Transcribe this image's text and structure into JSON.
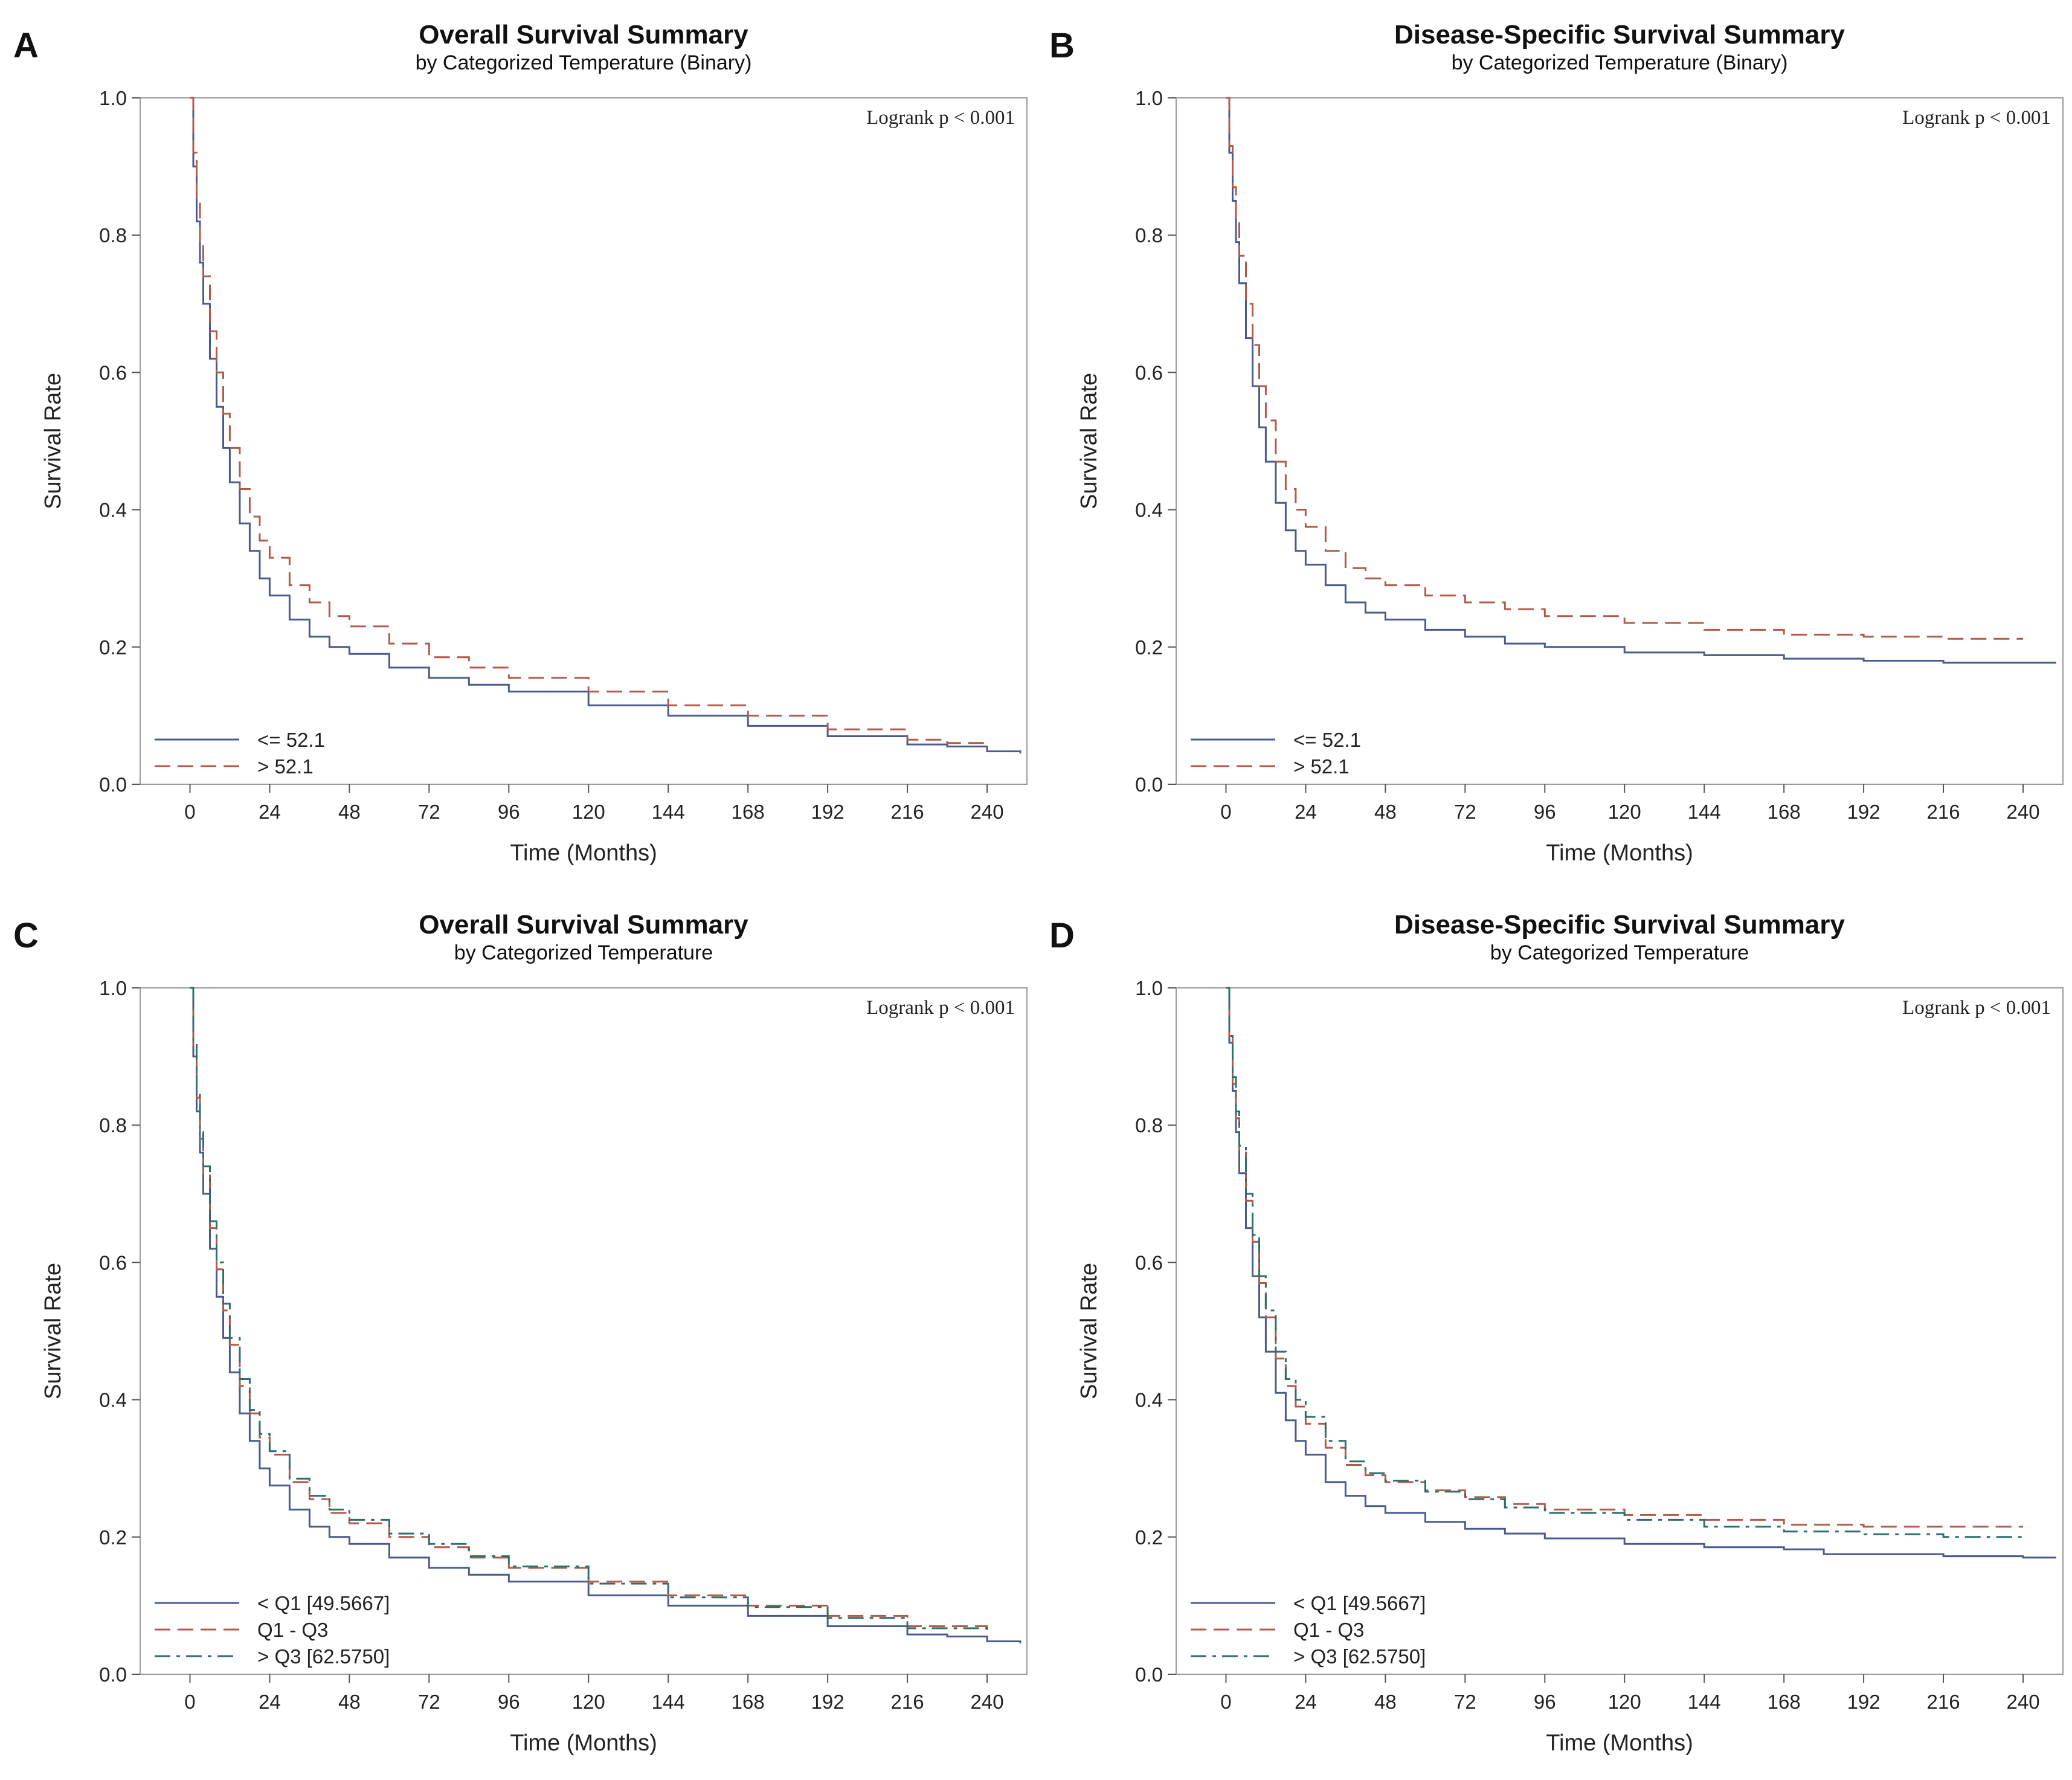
{
  "chart_data": [
    {
      "panel": "A",
      "type": "line",
      "title": "Overall Survival Summary",
      "subtitle": "by Categorized Temperature (Binary)",
      "xlabel": "Time (Months)",
      "ylabel": "Survival Rate",
      "xlim": [
        -15,
        252
      ],
      "ylim": [
        0,
        1
      ],
      "xticks": [
        "0",
        "24",
        "48",
        "72",
        "96",
        "120",
        "144",
        "168",
        "192",
        "216",
        "240"
      ],
      "yticks": [
        "0.0",
        "0.2",
        "0.4",
        "0.6",
        "0.8",
        "1.0"
      ],
      "annotation": "Logrank p < 0.001",
      "series": [
        {
          "name": "<= 52.1",
          "color": "#4a5a8c",
          "style": "solid",
          "x": [
            0,
            1,
            2,
            3,
            4,
            6,
            8,
            10,
            12,
            15,
            18,
            21,
            24,
            30,
            36,
            42,
            48,
            60,
            72,
            84,
            96,
            120,
            144,
            168,
            192,
            216,
            228,
            240,
            250
          ],
          "y": [
            1.0,
            0.9,
            0.82,
            0.76,
            0.7,
            0.62,
            0.55,
            0.49,
            0.44,
            0.38,
            0.34,
            0.3,
            0.275,
            0.24,
            0.215,
            0.2,
            0.19,
            0.17,
            0.155,
            0.145,
            0.135,
            0.115,
            0.1,
            0.085,
            0.07,
            0.058,
            0.055,
            0.048,
            0.045
          ]
        },
        {
          "name": "> 52.1",
          "color": "#b05a4a",
          "style": "dashed",
          "x": [
            0,
            1,
            2,
            3,
            4,
            6,
            8,
            10,
            12,
            15,
            18,
            21,
            24,
            30,
            36,
            42,
            48,
            60,
            72,
            84,
            96,
            120,
            144,
            168,
            192,
            216,
            228,
            240
          ],
          "y": [
            1.0,
            0.92,
            0.85,
            0.79,
            0.74,
            0.66,
            0.6,
            0.54,
            0.49,
            0.43,
            0.39,
            0.355,
            0.33,
            0.29,
            0.265,
            0.245,
            0.23,
            0.205,
            0.185,
            0.17,
            0.155,
            0.135,
            0.115,
            0.1,
            0.08,
            0.065,
            0.06,
            0.06
          ]
        }
      ]
    },
    {
      "panel": "B",
      "type": "line",
      "title": "Disease-Specific Survival Summary",
      "subtitle": "by Categorized Temperature (Binary)",
      "xlabel": "Time (Months)",
      "ylabel": "Survival Rate",
      "xlim": [
        -15,
        252
      ],
      "ylim": [
        0,
        1
      ],
      "xticks": [
        "0",
        "24",
        "48",
        "72",
        "96",
        "120",
        "144",
        "168",
        "192",
        "216",
        "240"
      ],
      "yticks": [
        "0.0",
        "0.2",
        "0.4",
        "0.6",
        "0.8",
        "1.0"
      ],
      "annotation": "Logrank p < 0.001",
      "series": [
        {
          "name": "<= 52.1",
          "color": "#4a5a8c",
          "style": "solid",
          "x": [
            0,
            1,
            2,
            3,
            4,
            6,
            8,
            10,
            12,
            15,
            18,
            21,
            24,
            30,
            36,
            42,
            48,
            60,
            72,
            84,
            96,
            120,
            144,
            168,
            192,
            216,
            240,
            250
          ],
          "y": [
            1.0,
            0.92,
            0.85,
            0.79,
            0.73,
            0.65,
            0.58,
            0.52,
            0.47,
            0.41,
            0.37,
            0.34,
            0.32,
            0.29,
            0.265,
            0.25,
            0.24,
            0.225,
            0.215,
            0.205,
            0.2,
            0.192,
            0.188,
            0.183,
            0.18,
            0.177,
            0.177,
            0.177
          ]
        },
        {
          "name": "> 52.1",
          "color": "#b05a4a",
          "style": "dashed",
          "x": [
            0,
            1,
            2,
            3,
            4,
            6,
            8,
            10,
            12,
            15,
            18,
            21,
            24,
            30,
            36,
            42,
            48,
            60,
            72,
            84,
            96,
            120,
            144,
            168,
            192,
            216,
            240
          ],
          "y": [
            1.0,
            0.93,
            0.87,
            0.82,
            0.77,
            0.7,
            0.64,
            0.58,
            0.53,
            0.47,
            0.43,
            0.4,
            0.375,
            0.34,
            0.315,
            0.3,
            0.29,
            0.275,
            0.265,
            0.255,
            0.245,
            0.235,
            0.225,
            0.218,
            0.215,
            0.212,
            0.212
          ]
        }
      ]
    },
    {
      "panel": "C",
      "type": "line",
      "title": "Overall Survival Summary",
      "subtitle": "by Categorized Temperature",
      "xlabel": "Time (Months)",
      "ylabel": "Survival Rate",
      "xlim": [
        -15,
        252
      ],
      "ylim": [
        0,
        1
      ],
      "xticks": [
        "0",
        "24",
        "48",
        "72",
        "96",
        "120",
        "144",
        "168",
        "192",
        "216",
        "240"
      ],
      "yticks": [
        "0.0",
        "0.2",
        "0.4",
        "0.6",
        "0.8",
        "1.0"
      ],
      "annotation": "Logrank p < 0.001",
      "series": [
        {
          "name": "< Q1 [49.5667]",
          "color": "#4a5a8c",
          "style": "solid",
          "x": [
            0,
            1,
            2,
            3,
            4,
            6,
            8,
            10,
            12,
            15,
            18,
            21,
            24,
            30,
            36,
            42,
            48,
            60,
            72,
            84,
            96,
            120,
            144,
            168,
            192,
            216,
            228,
            240,
            250
          ],
          "y": [
            1.0,
            0.9,
            0.82,
            0.76,
            0.7,
            0.62,
            0.55,
            0.49,
            0.44,
            0.38,
            0.34,
            0.3,
            0.275,
            0.24,
            0.215,
            0.2,
            0.19,
            0.17,
            0.155,
            0.145,
            0.135,
            0.115,
            0.1,
            0.085,
            0.07,
            0.058,
            0.055,
            0.048,
            0.045
          ]
        },
        {
          "name": "Q1 - Q3",
          "color": "#b05a4a",
          "style": "dashed",
          "x": [
            0,
            1,
            2,
            3,
            4,
            6,
            8,
            10,
            12,
            15,
            18,
            21,
            24,
            30,
            36,
            42,
            48,
            60,
            72,
            84,
            96,
            120,
            144,
            168,
            192,
            216,
            240
          ],
          "y": [
            1.0,
            0.91,
            0.84,
            0.78,
            0.73,
            0.65,
            0.59,
            0.53,
            0.48,
            0.42,
            0.38,
            0.345,
            0.32,
            0.28,
            0.255,
            0.235,
            0.22,
            0.2,
            0.185,
            0.17,
            0.155,
            0.135,
            0.115,
            0.1,
            0.085,
            0.07,
            0.06
          ]
        },
        {
          "name": "> Q3 [62.5750]",
          "color": "#2e6e6e",
          "style": "dashdot",
          "x": [
            0,
            1,
            2,
            3,
            4,
            6,
            8,
            10,
            12,
            15,
            18,
            21,
            24,
            30,
            36,
            42,
            48,
            60,
            72,
            84,
            96,
            120,
            144,
            168,
            192,
            216,
            240
          ],
          "y": [
            1.0,
            0.92,
            0.85,
            0.79,
            0.74,
            0.66,
            0.6,
            0.54,
            0.49,
            0.43,
            0.385,
            0.35,
            0.325,
            0.285,
            0.26,
            0.24,
            0.225,
            0.205,
            0.19,
            0.172,
            0.157,
            0.132,
            0.112,
            0.098,
            0.082,
            0.067,
            0.06
          ]
        }
      ]
    },
    {
      "panel": "D",
      "type": "line",
      "title": "Disease-Specific Survival Summary",
      "subtitle": "by Categorized Temperature",
      "xlabel": "Time (Months)",
      "ylabel": "Survival Rate",
      "xlim": [
        -15,
        252
      ],
      "ylim": [
        0,
        1
      ],
      "xticks": [
        "0",
        "24",
        "48",
        "72",
        "96",
        "120",
        "144",
        "168",
        "192",
        "216",
        "240"
      ],
      "yticks": [
        "0.0",
        "0.2",
        "0.4",
        "0.6",
        "0.8",
        "1.0"
      ],
      "annotation": "Logrank p < 0.001",
      "series": [
        {
          "name": "< Q1 [49.5667]",
          "color": "#4a5a8c",
          "style": "solid",
          "x": [
            0,
            1,
            2,
            3,
            4,
            6,
            8,
            10,
            12,
            15,
            18,
            21,
            24,
            30,
            36,
            42,
            48,
            60,
            72,
            84,
            96,
            120,
            144,
            168,
            180,
            192,
            216,
            240,
            250
          ],
          "y": [
            1.0,
            0.92,
            0.85,
            0.79,
            0.73,
            0.65,
            0.58,
            0.52,
            0.47,
            0.41,
            0.37,
            0.34,
            0.32,
            0.28,
            0.26,
            0.245,
            0.235,
            0.222,
            0.212,
            0.205,
            0.198,
            0.19,
            0.185,
            0.182,
            0.175,
            0.175,
            0.172,
            0.17,
            0.17
          ]
        },
        {
          "name": "Q1 - Q3",
          "color": "#b05a4a",
          "style": "dashed",
          "x": [
            0,
            1,
            2,
            3,
            4,
            6,
            8,
            10,
            12,
            15,
            18,
            21,
            24,
            30,
            36,
            42,
            48,
            60,
            72,
            84,
            96,
            120,
            144,
            168,
            192,
            216,
            240
          ],
          "y": [
            1.0,
            0.93,
            0.86,
            0.81,
            0.76,
            0.69,
            0.63,
            0.57,
            0.52,
            0.46,
            0.42,
            0.39,
            0.365,
            0.33,
            0.305,
            0.29,
            0.28,
            0.268,
            0.258,
            0.248,
            0.24,
            0.232,
            0.225,
            0.218,
            0.215,
            0.215,
            0.215
          ]
        },
        {
          "name": "> Q3 [62.5750]",
          "color": "#2e6e6e",
          "style": "dashdot",
          "x": [
            0,
            1,
            2,
            3,
            4,
            6,
            8,
            10,
            12,
            15,
            18,
            21,
            24,
            30,
            36,
            42,
            48,
            60,
            72,
            84,
            96,
            120,
            144,
            168,
            192,
            216,
            240
          ],
          "y": [
            1.0,
            0.93,
            0.87,
            0.82,
            0.77,
            0.7,
            0.64,
            0.58,
            0.53,
            0.47,
            0.43,
            0.4,
            0.375,
            0.34,
            0.31,
            0.293,
            0.282,
            0.266,
            0.255,
            0.243,
            0.235,
            0.225,
            0.215,
            0.208,
            0.204,
            0.2,
            0.2
          ]
        }
      ]
    }
  ]
}
